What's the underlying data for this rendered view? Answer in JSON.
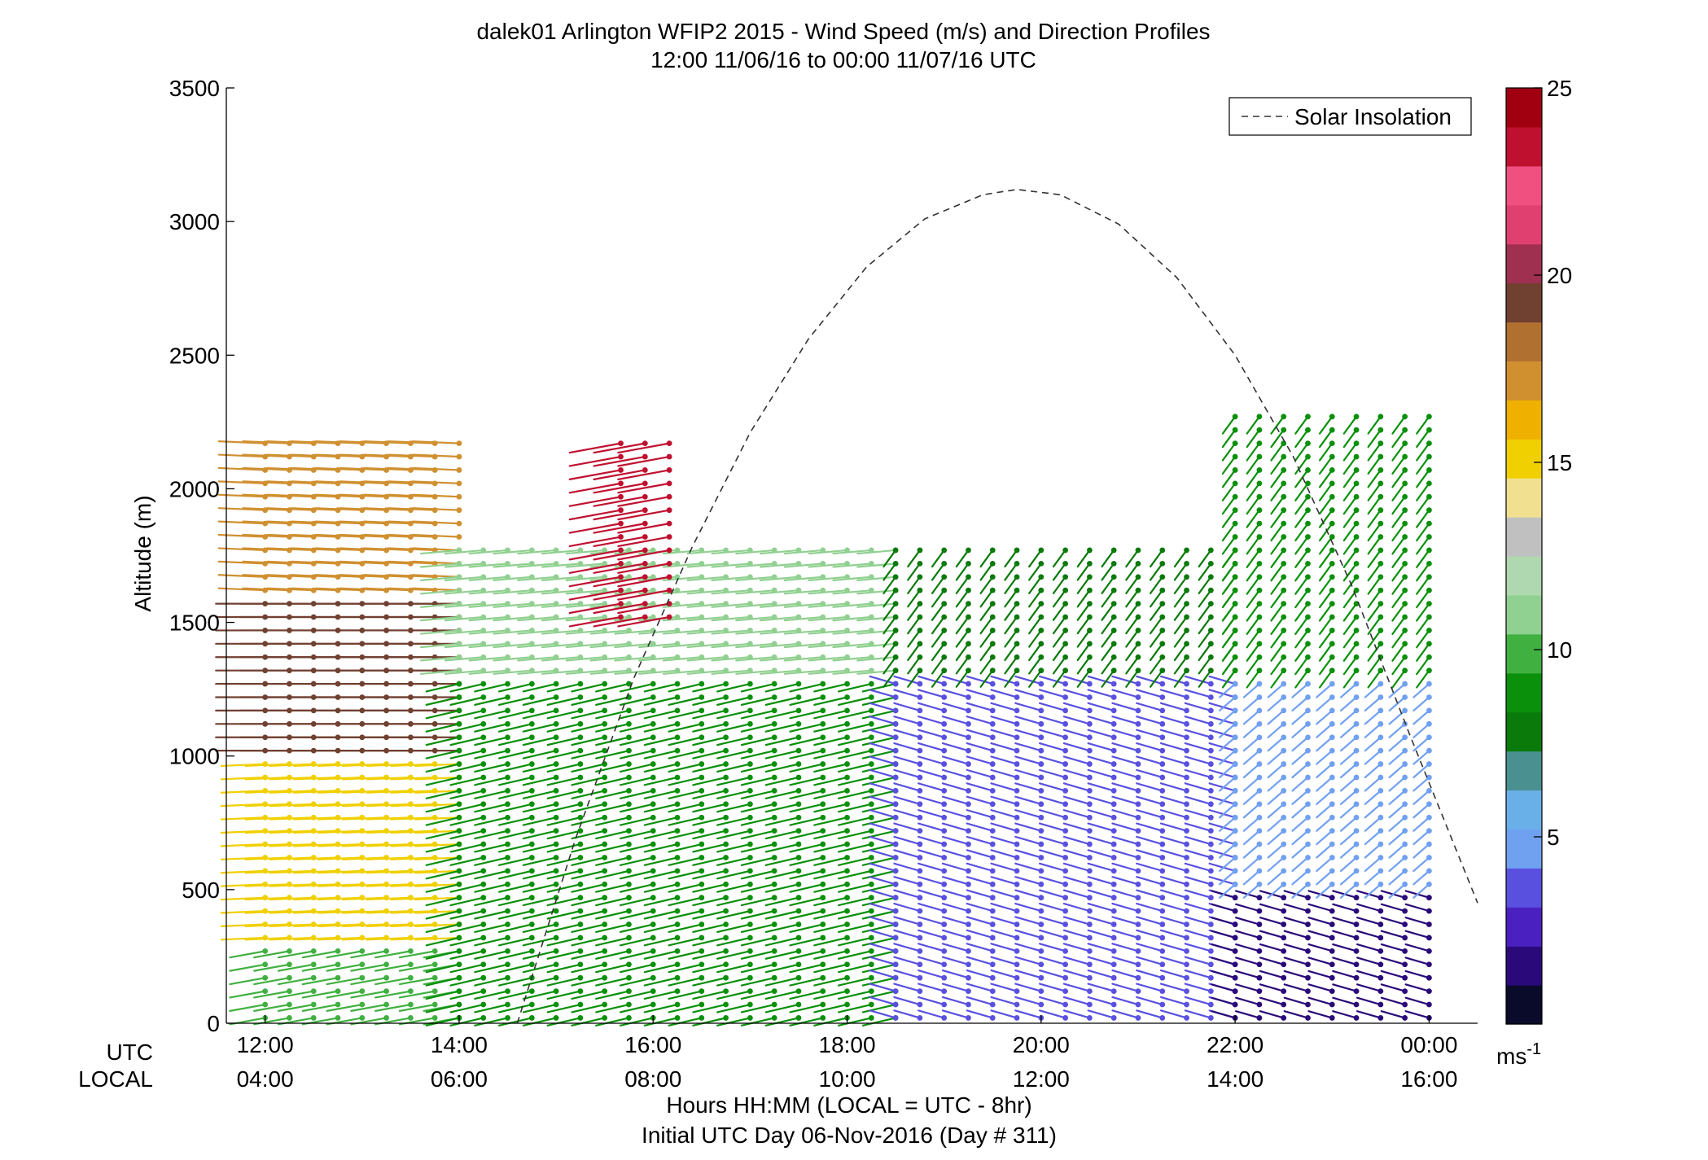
{
  "chart_data": {
    "type": "wind-barb-profile",
    "title": "dalek01 Arlington WFIP2 2015 - Wind Speed (m/s) and Direction Profiles",
    "subtitle": "12:00 11/06/16 to 00:00 11/07/16  UTC",
    "ylabel": "Altitude (m)",
    "ylim": [
      0,
      3500
    ],
    "yticks": [
      0,
      500,
      1000,
      1500,
      2000,
      2500,
      3000,
      3500
    ],
    "xlim_hours_utc": [
      11.6,
      24.5
    ],
    "x_row_utc_label": "UTC",
    "x_row_local_label": "LOCAL",
    "xticks_utc": [
      "12:00",
      "14:00",
      "16:00",
      "18:00",
      "20:00",
      "22:00",
      "00:00"
    ],
    "xticks_local": [
      "04:00",
      "06:00",
      "08:00",
      "10:00",
      "12:00",
      "14:00",
      "16:00"
    ],
    "xtick_hours": [
      12,
      14,
      16,
      18,
      20,
      22,
      24
    ],
    "xlabel_line1": "Hours HH:MM  (LOCAL = UTC - 8hr)",
    "xlabel_line2": "Initial UTC Day 06-Nov-2016 (Day # 311)",
    "legend": {
      "entry": "Solar Insolation",
      "placement": "top-right",
      "style": "dashed"
    },
    "colorbar": {
      "min": 0,
      "max": 25,
      "ticks": [
        5,
        10,
        15,
        20,
        25
      ],
      "unit_text": "ms",
      "unit_exp": "-1",
      "colors": [
        "#0a0a2a",
        "#2a0a7a",
        "#4a20c0",
        "#5a50e0",
        "#70a0f0",
        "#6ab0e8",
        "#4a9090",
        "#0a7a0a",
        "#0a900a",
        "#40b040",
        "#90d090",
        "#b0d8b0",
        "#c0c0c0",
        "#f0e090",
        "#f0d000",
        "#f0b000",
        "#d09030",
        "#b07030",
        "#704030",
        "#a03050",
        "#e04070",
        "#f05080",
        "#c01030",
        "#a00010"
      ]
    },
    "solar_insolation": {
      "x": [
        14.6,
        15.2,
        15.8,
        16.4,
        17.0,
        17.6,
        18.2,
        18.8,
        19.4,
        19.75,
        20.2,
        20.8,
        21.4,
        22.0,
        22.6,
        23.2,
        23.8,
        24.5
      ],
      "y": [
        0,
        690,
        1290,
        1780,
        2210,
        2560,
        2830,
        3010,
        3100,
        3120,
        3100,
        2990,
        2790,
        2500,
        2120,
        1640,
        1080,
        450
      ]
    },
    "profiles_summary": [
      {
        "time_range_utc": [
          "12:00",
          "14:00"
        ],
        "layer_m": [
          0,
          300
        ],
        "speed_ms": 10,
        "dir_deg": 250
      },
      {
        "time_range_utc": [
          "12:00",
          "14:00"
        ],
        "layer_m": [
          300,
          1000
        ],
        "speed_ms": 15,
        "dir_deg": 265
      },
      {
        "time_range_utc": [
          "12:00",
          "14:00"
        ],
        "layer_m": [
          1000,
          1600
        ],
        "speed_ms": 19,
        "dir_deg": 270
      },
      {
        "time_range_utc": [
          "12:00",
          "14:00"
        ],
        "layer_m": [
          1600,
          2200
        ],
        "speed_ms": 17,
        "dir_deg": 275
      },
      {
        "time_range_utc": [
          "14:00",
          "18:30"
        ],
        "layer_m": [
          0,
          1300
        ],
        "speed_ms": 9,
        "dir_deg": 245
      },
      {
        "time_range_utc": [
          "14:00",
          "18:30"
        ],
        "layer_m": [
          1300,
          1800
        ],
        "speed_ms": 11,
        "dir_deg": 260
      },
      {
        "time_range_utc": [
          "15:40",
          "16:10"
        ],
        "layer_m": [
          1500,
          2200
        ],
        "speed_ms": 23,
        "dir_deg": 250
      },
      {
        "time_range_utc": [
          "18:30",
          "22:00"
        ],
        "layer_m": [
          0,
          1300
        ],
        "speed_ms": 4,
        "dir_deg": 300
      },
      {
        "time_range_utc": [
          "18:30",
          "22:00"
        ],
        "layer_m": [
          1300,
          1800
        ],
        "speed_ms": 8,
        "dir_deg": 200
      },
      {
        "time_range_utc": [
          "22:00",
          "24:00"
        ],
        "layer_m": [
          0,
          500
        ],
        "speed_ms": 2,
        "dir_deg": 300
      },
      {
        "time_range_utc": [
          "22:00",
          "24:00"
        ],
        "layer_m": [
          500,
          1300
        ],
        "speed_ms": 5,
        "dir_deg": 210
      },
      {
        "time_range_utc": [
          "22:00",
          "24:00"
        ],
        "layer_m": [
          1300,
          2300
        ],
        "speed_ms": 9,
        "dir_deg": 200
      }
    ]
  }
}
